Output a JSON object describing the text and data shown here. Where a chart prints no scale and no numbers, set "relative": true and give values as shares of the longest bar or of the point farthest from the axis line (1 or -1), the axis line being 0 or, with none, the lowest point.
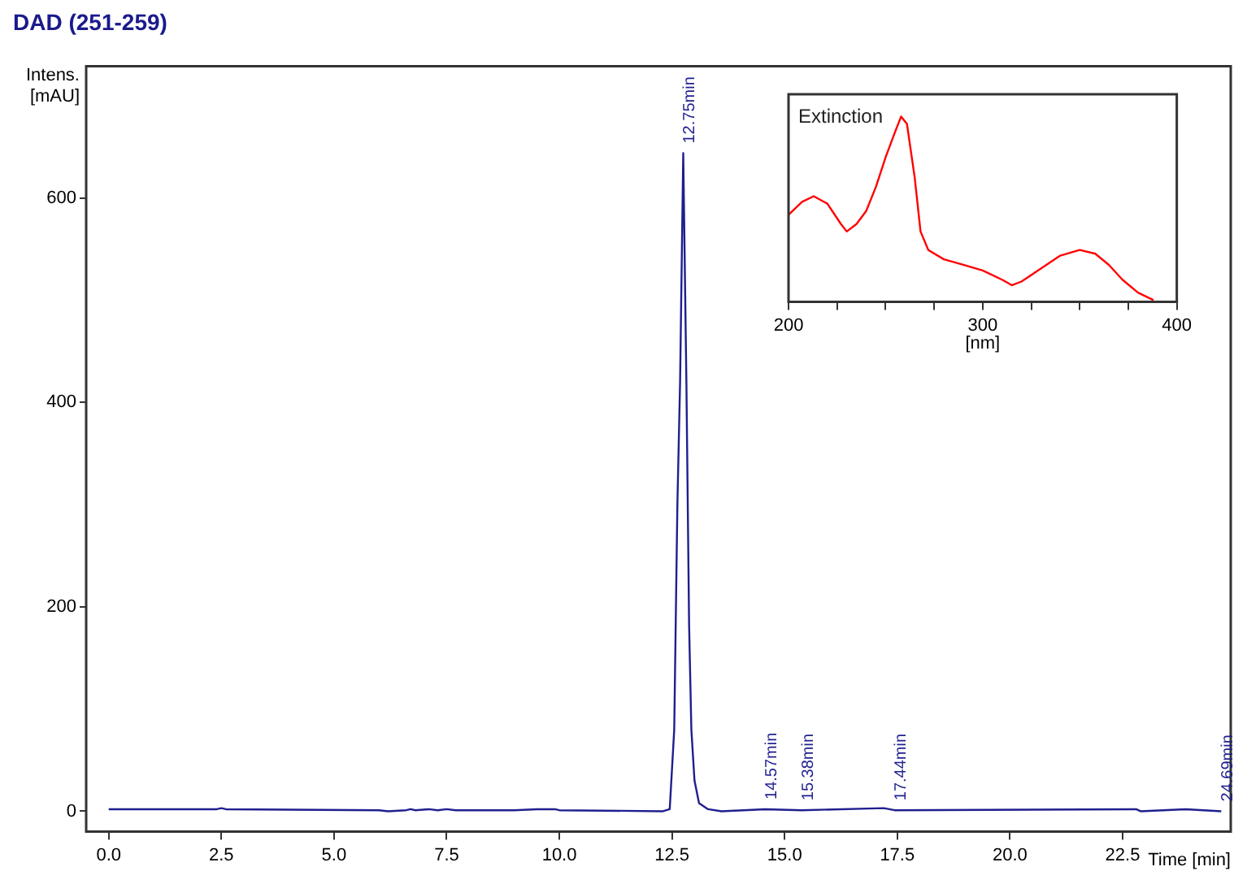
{
  "chart_data": [
    {
      "type": "line",
      "title": "DAD (251-259)",
      "xlabel": "Time [min]",
      "ylabel": "Intens. [mAU]",
      "xlim": [
        -0.5,
        24.9
      ],
      "ylim": [
        -20,
        729
      ],
      "xticks": [
        {
          "value": 0,
          "label": "0.0"
        },
        {
          "value": 2.5,
          "label": "2.5"
        },
        {
          "value": 5,
          "label": "5.0"
        },
        {
          "value": 7.5,
          "label": "7.5"
        },
        {
          "value": 10,
          "label": "10.0"
        },
        {
          "value": 12.5,
          "label": "12.5"
        },
        {
          "value": 15,
          "label": "15.0"
        },
        {
          "value": 17.5,
          "label": "17.5"
        },
        {
          "value": 20,
          "label": "20.0"
        },
        {
          "value": 22.5,
          "label": "22.5"
        }
      ],
      "yticks": [
        0,
        200,
        400,
        600
      ],
      "grid": false,
      "legend": false,
      "series": [
        {
          "color": "#1f1f8f",
          "x": [
            0,
            2.4,
            2.5,
            2.6,
            6.0,
            6.2,
            6.6,
            6.7,
            6.8,
            7.1,
            7.3,
            7.5,
            7.7,
            9.0,
            9.5,
            9.9,
            10.0,
            12.3,
            12.45,
            12.55,
            12.62,
            12.68,
            12.75,
            12.82,
            12.88,
            12.93,
            13.0,
            13.1,
            13.3,
            13.6,
            14.57,
            15.38,
            17.2,
            17.44,
            22.8,
            22.9,
            23.4,
            23.9,
            24.69
          ],
          "values": [
            2,
            2,
            3,
            2,
            1,
            0,
            1,
            2,
            1,
            2,
            1,
            2,
            1,
            1,
            2,
            2,
            1,
            0,
            2,
            80,
            300,
            420,
            644,
            420,
            182,
            80,
            30,
            8,
            2,
            0,
            2,
            1,
            3,
            1,
            2,
            0,
            1,
            2,
            0
          ]
        }
      ],
      "annotations": [
        {
          "text": "12.75min",
          "x": 12.75,
          "y": 644
        },
        {
          "text": "14.57min",
          "x": 14.57,
          "y": 2
        },
        {
          "text": "15.38min",
          "x": 15.38,
          "y": 1
        },
        {
          "text": "17.44min",
          "x": 17.44,
          "y": 1
        },
        {
          "text": "24.69min",
          "x": 24.69,
          "y": 0
        }
      ]
    },
    {
      "type": "line",
      "relative": true,
      "xlabel": "[nm]",
      "xlim": [
        200,
        400
      ],
      "xticks": [
        200,
        {
          "value": 225,
          "label": null
        },
        {
          "value": 250,
          "label": null
        },
        {
          "value": 275,
          "label": null
        },
        300,
        {
          "value": 325,
          "label": null
        },
        {
          "value": 350,
          "label": null
        },
        {
          "value": 375,
          "label": null
        },
        400
      ],
      "legend": false,
      "series": [
        {
          "color": "#ff0000",
          "x": [
            200,
            207,
            213,
            220,
            227,
            230,
            235,
            240,
            245,
            250,
            255,
            258,
            261,
            265,
            268,
            272,
            280,
            290,
            300,
            310,
            315,
            320,
            330,
            340,
            350,
            358,
            365,
            372,
            380,
            388
          ],
          "values": [
            0.47,
            0.54,
            0.57,
            0.53,
            0.42,
            0.38,
            0.42,
            0.49,
            0.62,
            0.78,
            0.92,
            1.0,
            0.96,
            0.67,
            0.38,
            0.28,
            0.23,
            0.2,
            0.17,
            0.12,
            0.09,
            0.11,
            0.18,
            0.25,
            0.28,
            0.26,
            0.2,
            0.12,
            0.05,
            0.01
          ]
        }
      ],
      "annotations": [
        "Extinction"
      ]
    }
  ]
}
